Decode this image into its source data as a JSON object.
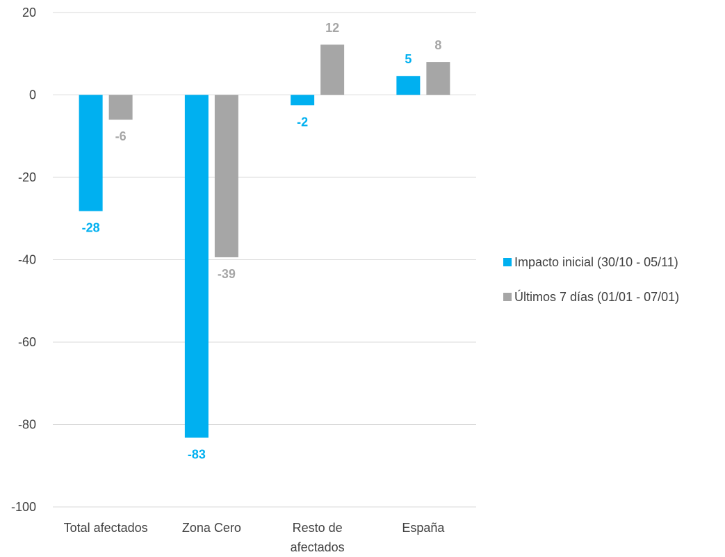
{
  "chart_data": {
    "type": "bar",
    "categories": [
      [
        "Total afectados"
      ],
      [
        "Zona Cero"
      ],
      [
        "Resto de",
        "afectados"
      ],
      [
        "España"
      ]
    ],
    "series": [
      {
        "name": "Impacto inicial (30/10 - 05/11)",
        "color": "#00B0F0",
        "label_color": "#00B0F0",
        "values": [
          -28,
          -83,
          -2,
          5
        ],
        "plotted_values": [
          -28.2,
          -83.2,
          -2.5,
          4.6
        ]
      },
      {
        "name": "Últimos 7 días (01/01 - 07/01)",
        "color": "#A6A6A6",
        "label_color": "#A6A6A6",
        "values": [
          -6,
          -39,
          12,
          8
        ],
        "plotted_values": [
          -6.0,
          -39.4,
          12.2,
          8.0
        ]
      }
    ],
    "ylim": [
      -100,
      20
    ],
    "yticks": [
      20,
      0,
      -20,
      -40,
      -60,
      -80,
      -100
    ],
    "grid": true,
    "legend_position": "right"
  }
}
